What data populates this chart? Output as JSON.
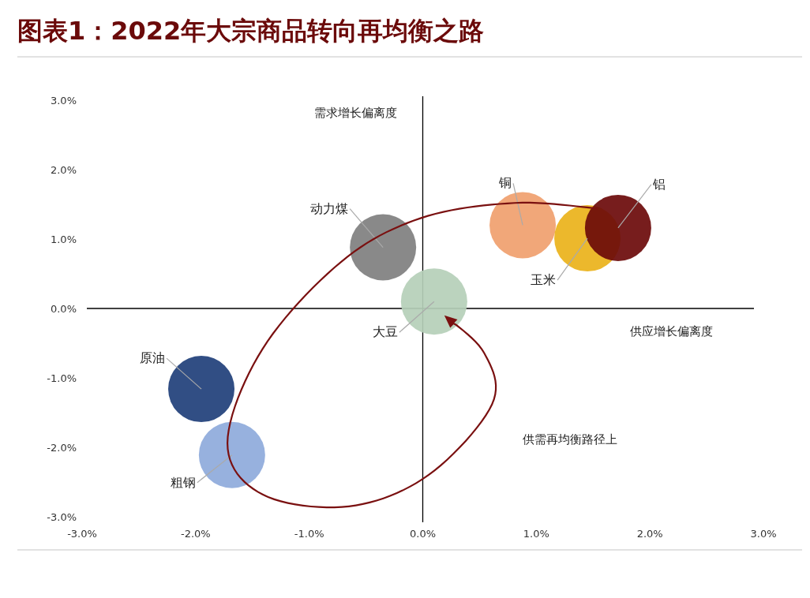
{
  "chart_data": {
    "type": "bubble",
    "title": "图表1：2022年大宗商品转向再均衡之路",
    "xlabel": "供应增长偏离度",
    "ylabel": "需求增长偏离度",
    "xlim": [
      -3,
      3
    ],
    "ylim": [
      -3,
      3
    ],
    "xticks": [
      {
        "value": -3,
        "label": "-3.0%"
      },
      {
        "value": -2,
        "label": "-2.0%"
      },
      {
        "value": -1,
        "label": "-1.0%"
      },
      {
        "value": 0,
        "label": "0.0%"
      },
      {
        "value": 1,
        "label": "1.0%"
      },
      {
        "value": 2,
        "label": "2.0%"
      },
      {
        "value": 3,
        "label": "3.0%"
      }
    ],
    "yticks": [
      {
        "value": -3,
        "label": "-3.0%"
      },
      {
        "value": -2,
        "label": "-2.0%"
      },
      {
        "value": -1,
        "label": "-1.0%"
      },
      {
        "value": 0,
        "label": "0.0%"
      },
      {
        "value": 1,
        "label": "1.0%"
      },
      {
        "value": 2,
        "label": "2.0%"
      },
      {
        "value": 3,
        "label": "3.0%"
      }
    ],
    "annotations": [
      "供需再均衡路径上"
    ],
    "series": [
      {
        "name": "原油",
        "color": "#1f3f7a",
        "x": [
          -1.95
        ],
        "values": [
          -1.16
        ],
        "sizes": [
          1
        ]
      },
      {
        "name": "粗钢",
        "color": "#8eaadb",
        "x": [
          -1.68
        ],
        "values": [
          -2.11
        ],
        "sizes": [
          1
        ]
      },
      {
        "name": "动力煤",
        "color": "#7f7f7f",
        "x": [
          -0.35
        ],
        "values": [
          0.88
        ],
        "sizes": [
          1
        ]
      },
      {
        "name": "大豆",
        "color": "#b5cfb8",
        "x": [
          0.1
        ],
        "values": [
          0.1
        ],
        "sizes": [
          1
        ]
      },
      {
        "name": "铜",
        "color": "#f0a06e",
        "x": [
          0.88
        ],
        "values": [
          1.2
        ],
        "sizes": [
          1
        ]
      },
      {
        "name": "玉米",
        "color": "#eab21a",
        "x": [
          1.45
        ],
        "values": [
          1.01
        ],
        "sizes": [
          1
        ]
      },
      {
        "name": "铝",
        "color": "#6b0a0a",
        "x": [
          1.72
        ],
        "values": [
          1.16
        ],
        "sizes": [
          1
        ]
      }
    ]
  }
}
